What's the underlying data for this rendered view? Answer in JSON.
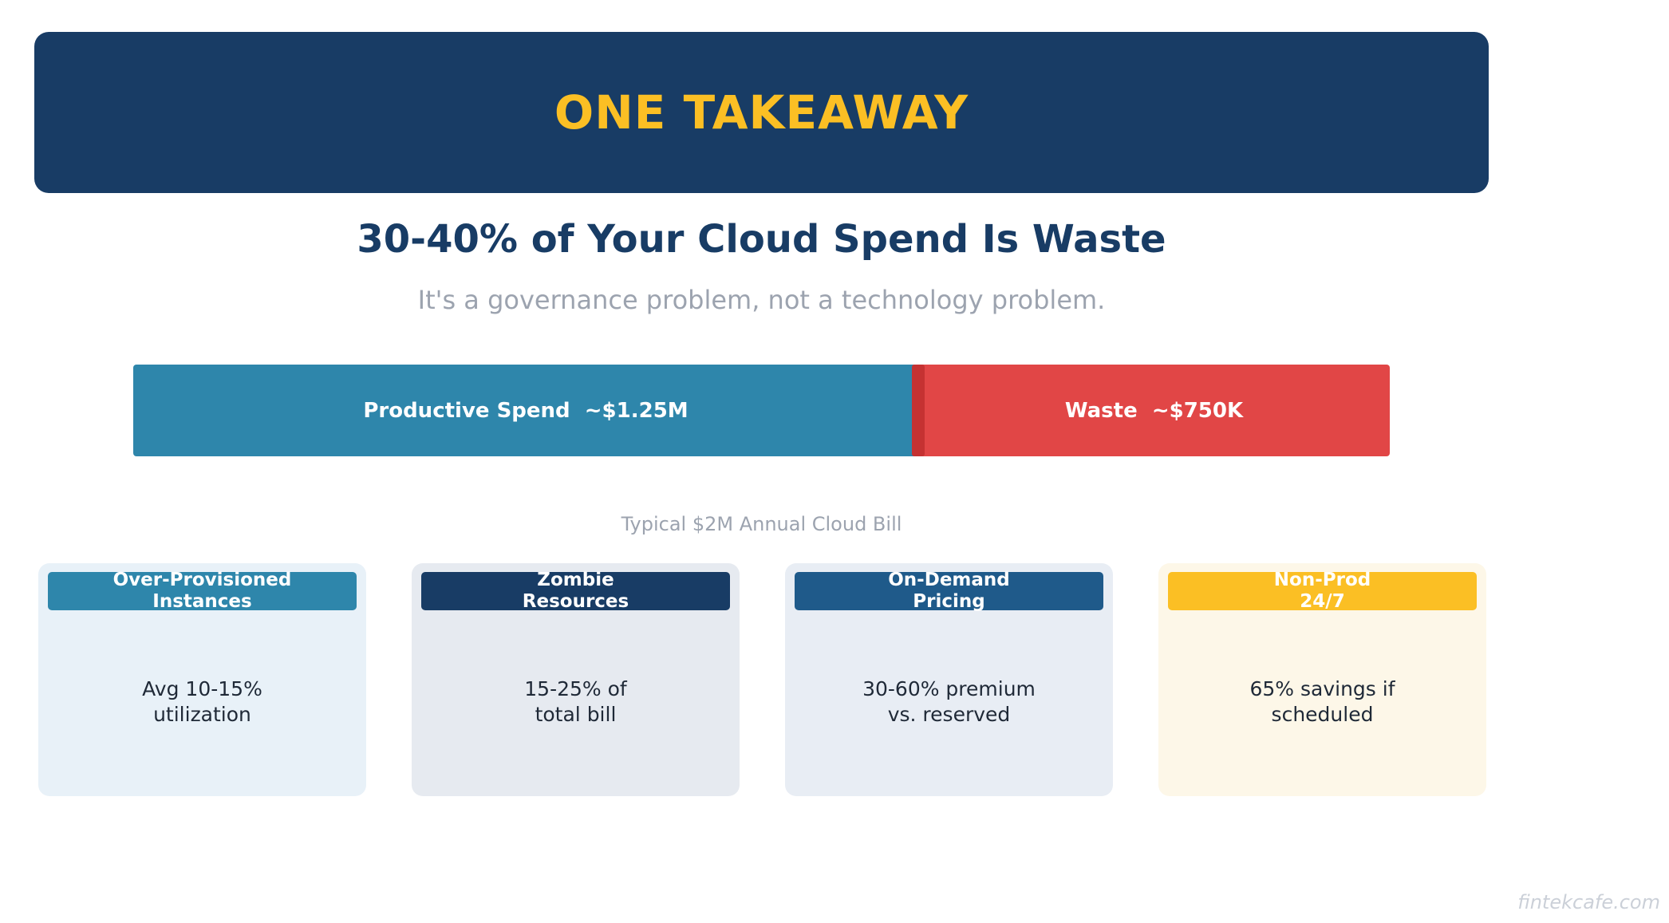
{
  "banner": {
    "title": "ONE TAKEAWAY",
    "bg_color": "#183c65",
    "title_color": "#fbbf24"
  },
  "headline": "30-40% of Your Cloud Spend Is Waste",
  "subline": "It's a governance problem, not a technology problem.",
  "chart_data": {
    "type": "bar",
    "orientation": "horizontal-stacked",
    "categories": [
      "Productive Spend",
      "Waste"
    ],
    "values": [
      1250000,
      750000
    ],
    "labels": [
      "Productive Spend  ~$1.25M",
      "Waste  ~$750K"
    ],
    "colors": [
      "#2e86ab",
      "#e14646"
    ],
    "total": 2000000,
    "caption": "Typical $2M Annual Cloud Bill"
  },
  "cards": [
    {
      "title": "Over-Provisioned\nInstances",
      "body": "Avg 10-15%\nutilization",
      "tag_color": "#2e86ab",
      "bg_color": "#e8f1f8"
    },
    {
      "title": "Zombie\nResources",
      "body": "15-25% of\ntotal bill",
      "tag_color": "#183c65",
      "bg_color": "#e6eaf0"
    },
    {
      "title": "On-Demand\nPricing",
      "body": "30-60% premium\nvs. reserved",
      "tag_color": "#1f5a8a",
      "bg_color": "#e8edf4"
    },
    {
      "title": "Non-Prod\n24/7",
      "body": "65% savings if\nscheduled",
      "tag_color": "#fbbf24",
      "bg_color": "#fdf7e8"
    }
  ],
  "watermark": "fintekcafe.com"
}
